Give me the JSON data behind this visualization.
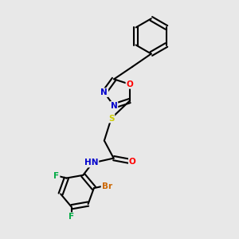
{
  "background_color": "#e8e8e8",
  "bond_color": "#000000",
  "atom_colors": {
    "N": "#0000cc",
    "O": "#ff0000",
    "S": "#cccc00",
    "F": "#00aa44",
    "Br": "#cc6600",
    "C": "#000000"
  },
  "figsize": [
    3.0,
    3.0
  ],
  "dpi": 100
}
